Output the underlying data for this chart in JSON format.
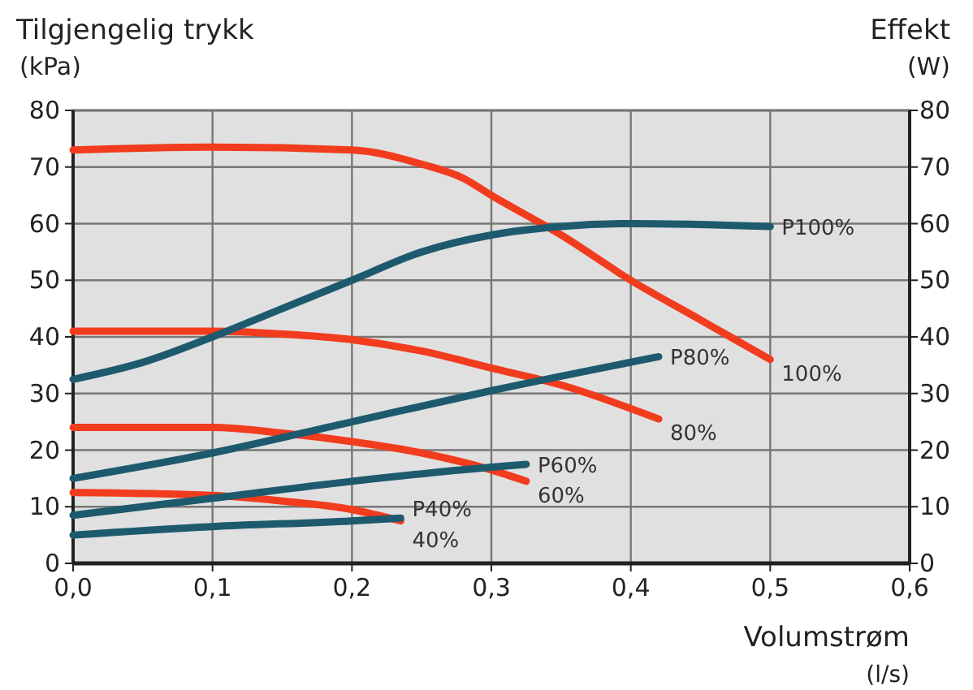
{
  "chart_data": {
    "type": "line",
    "ylabel": "Tilgjengelig trykk\n(kPa)",
    "y2label": "Effekt\n(W)",
    "xlabel": "Volumstrøm\n(l/s)",
    "xlim": [
      0,
      0.6
    ],
    "xticks": [
      {
        "value": 0,
        "label": "0,0"
      },
      {
        "value": 0.1,
        "label": "0,1"
      },
      {
        "value": 0.2,
        "label": "0,2"
      },
      {
        "value": 0.3,
        "label": "0,3"
      },
      {
        "value": 0.4,
        "label": "0,4"
      },
      {
        "value": 0.5,
        "label": "0,5"
      },
      {
        "value": 0.6,
        "label": "0,6"
      }
    ],
    "ylim": [
      0,
      80
    ],
    "yticks": [
      0,
      10,
      20,
      30,
      40,
      50,
      60,
      70,
      80
    ],
    "y2lim": [
      0,
      80
    ],
    "y2ticks": [
      0,
      10,
      20,
      30,
      40,
      50,
      60,
      70,
      80
    ],
    "grid": true,
    "series": [
      {
        "name": "100%",
        "color": "#f23c1e",
        "x": [
          0,
          0.1,
          0.2,
          0.25,
          0.28,
          0.3,
          0.35,
          0.4,
          0.45,
          0.5
        ],
        "values": [
          73,
          73.5,
          73,
          70.5,
          68,
          65,
          58,
          50,
          43,
          36
        ]
      },
      {
        "name": "80%",
        "color": "#f23c1e",
        "x": [
          0,
          0.1,
          0.15,
          0.2,
          0.25,
          0.3,
          0.35,
          0.42
        ],
        "values": [
          41,
          41,
          40.5,
          39.5,
          37.5,
          34.5,
          31.5,
          25.5
        ]
      },
      {
        "name": "60%",
        "color": "#f23c1e",
        "x": [
          0,
          0.1,
          0.15,
          0.2,
          0.25,
          0.3,
          0.325
        ],
        "values": [
          24,
          24,
          23,
          21.5,
          19.5,
          16.5,
          14.5
        ]
      },
      {
        "name": "40%",
        "color": "#f23c1e",
        "x": [
          0,
          0.1,
          0.15,
          0.2,
          0.235
        ],
        "values": [
          12.5,
          12,
          11,
          9.5,
          7.5
        ]
      },
      {
        "name": "P100%",
        "color": "#1e5a6e",
        "axis": "y2",
        "x": [
          0,
          0.05,
          0.1,
          0.15,
          0.2,
          0.25,
          0.3,
          0.35,
          0.4,
          0.5
        ],
        "values": [
          32.5,
          35.5,
          40,
          45,
          50,
          55,
          58,
          59.5,
          60,
          59.5
        ]
      },
      {
        "name": "P80%",
        "color": "#1e5a6e",
        "axis": "y2",
        "x": [
          0,
          0.1,
          0.2,
          0.3,
          0.42
        ],
        "values": [
          15,
          19.5,
          25,
          30.5,
          36.5
        ]
      },
      {
        "name": "P60%",
        "color": "#1e5a6e",
        "axis": "y2",
        "x": [
          0,
          0.1,
          0.2,
          0.3,
          0.325
        ],
        "values": [
          8.5,
          11.5,
          14.5,
          17,
          17.5
        ]
      },
      {
        "name": "P40%",
        "color": "#1e5a6e",
        "axis": "y2",
        "x": [
          0,
          0.1,
          0.2,
          0.235
        ],
        "values": [
          5,
          6.5,
          7.5,
          8
        ]
      }
    ]
  }
}
